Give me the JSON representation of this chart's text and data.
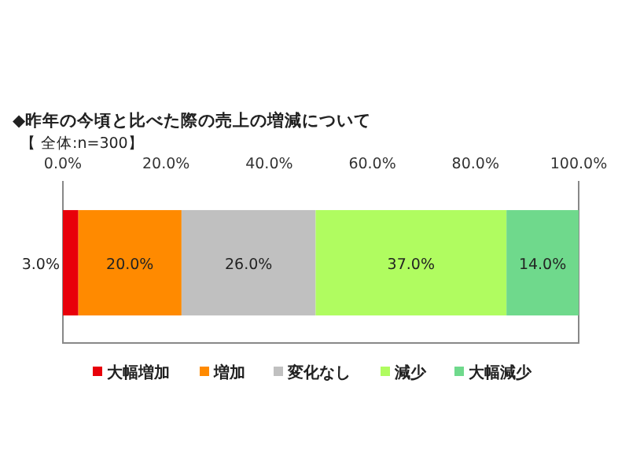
{
  "chart_data": {
    "type": "bar",
    "orientation": "horizontal",
    "stacked": true,
    "title": "◆昨年の今頃と比べた際の売上の増減について",
    "subtitle": "【 全体:n=300】",
    "categories": [
      null
    ],
    "xlim": [
      0,
      100
    ],
    "xticks": [
      {
        "value": 0,
        "label": "0.0%"
      },
      {
        "value": 20,
        "label": "20.0%"
      },
      {
        "value": 40,
        "label": "40.0%"
      },
      {
        "value": 60,
        "label": "60.0%"
      },
      {
        "value": 80,
        "label": "80.0%"
      },
      {
        "value": 100,
        "label": "100.0%"
      }
    ],
    "legend": "bottom",
    "series": [
      {
        "name": "大幅増加",
        "color": "#e8000a",
        "values": [
          3
        ],
        "value_labels": [
          "3.0%"
        ]
      },
      {
        "name": "増加",
        "color": "#ff8a00",
        "values": [
          20
        ],
        "value_labels": [
          "20.0%"
        ]
      },
      {
        "name": "変化なし",
        "color": "#c0c0c0",
        "values": [
          26
        ],
        "value_labels": [
          "26.0%"
        ]
      },
      {
        "name": "減少",
        "color": "#b0fc60",
        "values": [
          37
        ],
        "value_labels": [
          "37.0%"
        ]
      },
      {
        "name": "大幅減少",
        "color": "#6fd98c",
        "values": [
          14
        ],
        "value_labels": [
          "14.0%"
        ]
      }
    ]
  }
}
